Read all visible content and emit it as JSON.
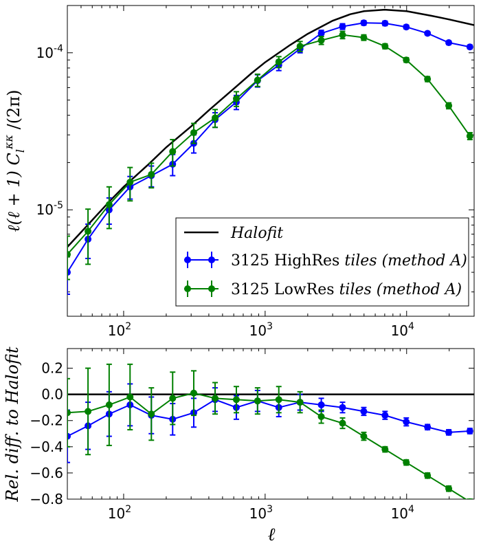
{
  "chart_data": [
    {
      "type": "line",
      "panel": "top",
      "xscale": "log",
      "yscale": "log",
      "xlim": [
        40,
        30000
      ],
      "ylim": [
        2.1e-06,
        0.0002
      ],
      "xticks": [
        {
          "v": 100,
          "base": "10",
          "exp": "2"
        },
        {
          "v": 1000,
          "base": "10",
          "exp": "3"
        },
        {
          "v": 10000,
          "base": "10",
          "exp": "4"
        }
      ],
      "yticks": [
        {
          "v": 1e-05,
          "base": "10",
          "exp": "-5"
        },
        {
          "v": 0.0001,
          "base": "10",
          "exp": "-4"
        }
      ],
      "ylabel": "ℓ(ℓ + 1) C_l^κκ /(2π)",
      "ylabel_parts": {
        "pre": "ℓ(ℓ + 1) C",
        "sub": "l",
        "sup": "κκ",
        "post": " /(2π)"
      },
      "legend_position": "lower-right",
      "series": [
        {
          "name": "Halofit",
          "color": "#000000",
          "marker": false,
          "x": [
            40,
            50,
            60,
            80,
            100,
            150,
            200,
            300,
            400,
            600,
            800,
            1000,
            1500,
            2000,
            3000,
            4000,
            5000,
            7000,
            10000,
            15000,
            20000,
            30000
          ],
          "y": [
            5.8e-06,
            7.2e-06,
            8.6e-06,
            1.14e-05,
            1.4e-05,
            1.95e-05,
            2.5e-05,
            3.4e-05,
            4.3e-05,
            5.9e-05,
            7.4e-05,
            8.7e-05,
            0.000112,
            0.000132,
            0.00016,
            0.000176,
            0.000184,
            0.000188,
            0.000184,
            0.000172,
            0.000163,
            0.00015
          ]
        },
        {
          "name": "3125 HighRes tiles (method A)",
          "legend_parts": {
            "num": "3125",
            "roman": "HighRes",
            "it": "tiles (method A)"
          },
          "color": "#0000ff",
          "marker": true,
          "x": [
            40,
            56,
            79,
            111,
            157,
            222,
            313,
            443,
            626,
            884,
            1249,
            1765,
            2494,
            3525,
            4981,
            7038,
            9944,
            14050,
            19850,
            28000
          ],
          "y": [
            4e-06,
            6.5e-06,
            1e-05,
            1.4e-05,
            1.65e-05,
            1.95e-05,
            2.65e-05,
            3.75e-05,
            4.85e-05,
            6.65e-05,
            8.35e-05,
            0.000106,
            0.000133,
            0.000147,
            0.000155,
            0.000154,
            0.000146,
            0.000133,
            0.000116,
            0.000109
          ],
          "yerr": [
            1.1e-06,
            1.6e-06,
            1.9e-06,
            2.3e-06,
            2.5e-06,
            3e-06,
            3.5e-06,
            4e-06,
            5e-06,
            6e-06,
            6.5e-06,
            6e-06,
            6e-06,
            6e-06,
            5e-06,
            5e-06,
            4e-06,
            3e-06,
            3e-06,
            3e-06
          ]
        },
        {
          "name": "3125 LowRes tiles (method A)",
          "legend_parts": {
            "num": "3125",
            "roman": "LowRes",
            "it": "tiles (method A)"
          },
          "color": "#008000",
          "marker": true,
          "x": [
            40,
            56,
            79,
            111,
            157,
            222,
            313,
            443,
            626,
            884,
            1249,
            1765,
            2494,
            3525,
            4981,
            7038,
            9944,
            14050,
            19850,
            28000
          ],
          "y": [
            5.2e-06,
            7.3e-06,
            1.08e-05,
            1.5e-05,
            1.68e-05,
            2.35e-05,
            3.1e-05,
            3.85e-05,
            5.1e-05,
            6.7e-05,
            8.75e-05,
            0.00011,
            0.00012,
            0.00013,
            0.000125,
            0.00011,
            9e-05,
            6.8e-05,
            4.6e-05,
            2.95e-05
          ],
          "yerr": [
            1.6e-06,
            2.8e-06,
            3.2e-06,
            3.6e-06,
            3e-06,
            4.5e-06,
            4.5e-06,
            5e-06,
            5.5e-06,
            6e-06,
            7e-06,
            8e-06,
            7e-06,
            7e-06,
            5e-06,
            4e-06,
            3e-06,
            2.5e-06,
            2e-06,
            1.5e-06
          ]
        }
      ]
    },
    {
      "type": "line",
      "panel": "bottom",
      "xscale": "log",
      "yscale": "linear",
      "xlim": [
        40,
        30000
      ],
      "ylim": [
        -0.8,
        0.35
      ],
      "xticks": [
        {
          "v": 100,
          "base": "10",
          "exp": "2"
        },
        {
          "v": 1000,
          "base": "10",
          "exp": "3"
        },
        {
          "v": 10000,
          "base": "10",
          "exp": "4"
        }
      ],
      "yticks": [
        {
          "v": 0.2,
          "label": "0.2"
        },
        {
          "v": 0.0,
          "label": "0.0"
        },
        {
          "v": -0.2,
          "label": "−0.2"
        },
        {
          "v": -0.4,
          "label": "−0.4"
        },
        {
          "v": -0.6,
          "label": "−0.6"
        },
        {
          "v": -0.8,
          "label": "−0.8"
        }
      ],
      "xlabel": "ℓ",
      "ylabel": "Rel. diff. to Halofit",
      "reference_line": 0.0,
      "series": [
        {
          "name": "3125 HighRes tiles (method A)",
          "color": "#0000ff",
          "x": [
            40,
            56,
            79,
            111,
            157,
            222,
            313,
            443,
            626,
            884,
            1249,
            1765,
            2494,
            3525,
            4981,
            7038,
            9944,
            14050,
            19850,
            28000
          ],
          "y": [
            -0.32,
            -0.24,
            -0.15,
            -0.08,
            -0.16,
            -0.19,
            -0.14,
            -0.04,
            -0.1,
            -0.05,
            -0.1,
            -0.06,
            -0.08,
            -0.1,
            -0.13,
            -0.16,
            -0.21,
            -0.25,
            -0.29,
            -0.28
          ],
          "yerr": [
            0.2,
            0.18,
            0.17,
            0.16,
            0.14,
            0.12,
            0.11,
            0.09,
            0.09,
            0.08,
            0.07,
            0.06,
            0.05,
            0.04,
            0.03,
            0.03,
            0.03,
            0.02,
            0.02,
            0.02
          ]
        },
        {
          "name": "3125 LowRes tiles (method A)",
          "color": "#008000",
          "x": [
            40,
            56,
            79,
            111,
            157,
            222,
            313,
            443,
            626,
            884,
            1249,
            1765,
            2494,
            3525,
            4981,
            7038,
            9944,
            14050,
            19850,
            28000
          ],
          "y": [
            -0.14,
            -0.13,
            -0.08,
            -0.02,
            -0.15,
            -0.03,
            0.01,
            -0.03,
            -0.04,
            -0.05,
            -0.04,
            -0.06,
            -0.17,
            -0.22,
            -0.32,
            -0.42,
            -0.52,
            -0.62,
            -0.72,
            -0.82
          ],
          "yerr": [
            0.26,
            0.33,
            0.31,
            0.25,
            0.2,
            0.2,
            0.17,
            0.12,
            0.1,
            0.1,
            0.1,
            0.08,
            0.05,
            0.04,
            0.03,
            0.02,
            0.02,
            0.02,
            0.02,
            0.02
          ]
        }
      ]
    }
  ]
}
